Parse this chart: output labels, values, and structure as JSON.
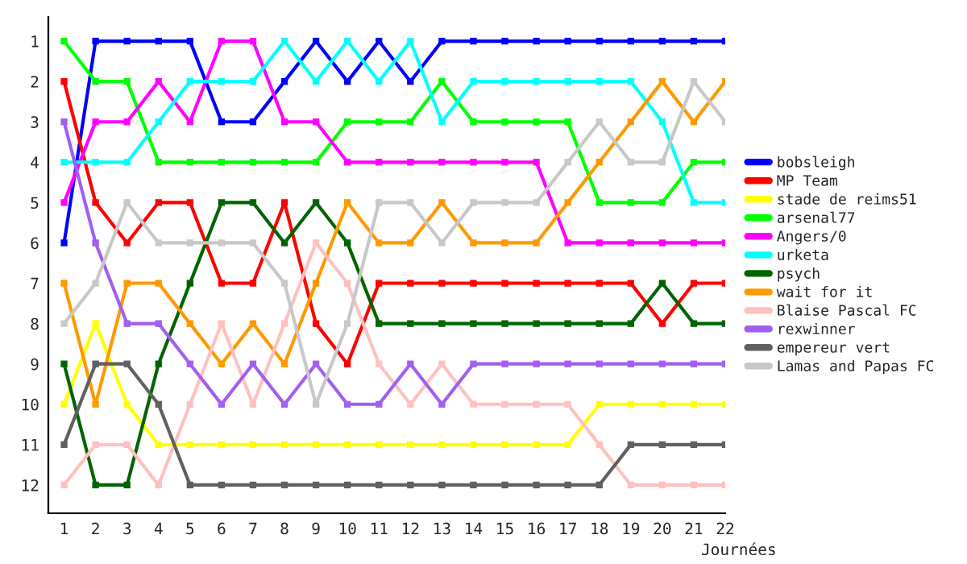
{
  "chart_data": {
    "type": "line",
    "xlabel": "Journées",
    "x": [
      1,
      2,
      3,
      4,
      5,
      6,
      7,
      8,
      9,
      10,
      11,
      12,
      13,
      14,
      15,
      16,
      17,
      18,
      19,
      20,
      21,
      22
    ],
    "xlim": [
      0.5,
      22
    ],
    "xticks": [
      1,
      2,
      3,
      4,
      5,
      6,
      7,
      8,
      9,
      10,
      11,
      12,
      13,
      14,
      15,
      16,
      17,
      18,
      19,
      20,
      21,
      22
    ],
    "ylim": [
      12.7,
      0.4
    ],
    "yticks": [
      1,
      2,
      3,
      4,
      5,
      6,
      7,
      8,
      9,
      10,
      11,
      12
    ],
    "grid": false,
    "legend": "right",
    "marker": "square",
    "line_style": "solid",
    "series": [
      {
        "name": "bobsleigh",
        "color": "#0000ff",
        "values": [
          6,
          1,
          1,
          1,
          1,
          3,
          3,
          2,
          1,
          2,
          1,
          2,
          1,
          1,
          1,
          1,
          1,
          1,
          1,
          1,
          1,
          1
        ]
      },
      {
        "name": "MP Team",
        "color": "#ff0000",
        "values": [
          2,
          5,
          6,
          5,
          5,
          7,
          7,
          5,
          8,
          9,
          7,
          7,
          7,
          7,
          7,
          7,
          7,
          7,
          7,
          8,
          7,
          7
        ]
      },
      {
        "name": "stade de reims51",
        "color": "#ffff00",
        "values": [
          10,
          8,
          10,
          11,
          11,
          11,
          11,
          11,
          11,
          11,
          11,
          11,
          11,
          11,
          11,
          11,
          11,
          10,
          10,
          10,
          10,
          10
        ]
      },
      {
        "name": "arsenal77",
        "color": "#00ff00",
        "values": [
          1,
          2,
          2,
          4,
          4,
          4,
          4,
          4,
          4,
          3,
          3,
          3,
          2,
          3,
          3,
          3,
          3,
          5,
          5,
          5,
          4,
          4
        ]
      },
      {
        "name": "Angers/0",
        "color": "#ff00ff",
        "values": [
          5,
          3,
          3,
          2,
          3,
          1,
          1,
          3,
          3,
          4,
          4,
          4,
          4,
          4,
          4,
          4,
          6,
          6,
          6,
          6,
          6,
          6
        ]
      },
      {
        "name": "urketa",
        "color": "#00ffff",
        "values": [
          4,
          4,
          4,
          3,
          2,
          2,
          2,
          1,
          2,
          1,
          2,
          1,
          3,
          2,
          2,
          2,
          2,
          2,
          2,
          3,
          5,
          5
        ]
      },
      {
        "name": "psych",
        "color": "#006400",
        "values": [
          9,
          12,
          12,
          9,
          7,
          5,
          5,
          6,
          5,
          6,
          8,
          8,
          8,
          8,
          8,
          8,
          8,
          8,
          8,
          7,
          8,
          8
        ]
      },
      {
        "name": "wait for it",
        "color": "#ff9900",
        "values": [
          7,
          10,
          7,
          7,
          8,
          9,
          8,
          9,
          7,
          5,
          6,
          6,
          5,
          6,
          6,
          6,
          5,
          4,
          3,
          2,
          3,
          2
        ]
      },
      {
        "name": "Blaise Pascal FC",
        "color": "#ffc0c0",
        "values": [
          12,
          11,
          11,
          12,
          10,
          8,
          10,
          8,
          6,
          7,
          9,
          10,
          9,
          10,
          10,
          10,
          10,
          11,
          12,
          12,
          12,
          12
        ]
      },
      {
        "name": "rexwinner",
        "color": "#a060f0",
        "values": [
          3,
          6,
          8,
          8,
          9,
          10,
          9,
          10,
          9,
          10,
          10,
          9,
          10,
          9,
          9,
          9,
          9,
          9,
          9,
          9,
          9,
          9
        ]
      },
      {
        "name": "empereur vert",
        "color": "#606060",
        "values": [
          11,
          9,
          9,
          10,
          12,
          12,
          12,
          12,
          12,
          12,
          12,
          12,
          12,
          12,
          12,
          12,
          12,
          12,
          11,
          11,
          11,
          11
        ]
      },
      {
        "name": "Lamas and Papas FC",
        "color": "#c8c8c8",
        "values": [
          8,
          7,
          5,
          6,
          6,
          6,
          6,
          7,
          10,
          8,
          5,
          5,
          6,
          5,
          5,
          5,
          4,
          3,
          4,
          4,
          2,
          3
        ]
      }
    ]
  }
}
